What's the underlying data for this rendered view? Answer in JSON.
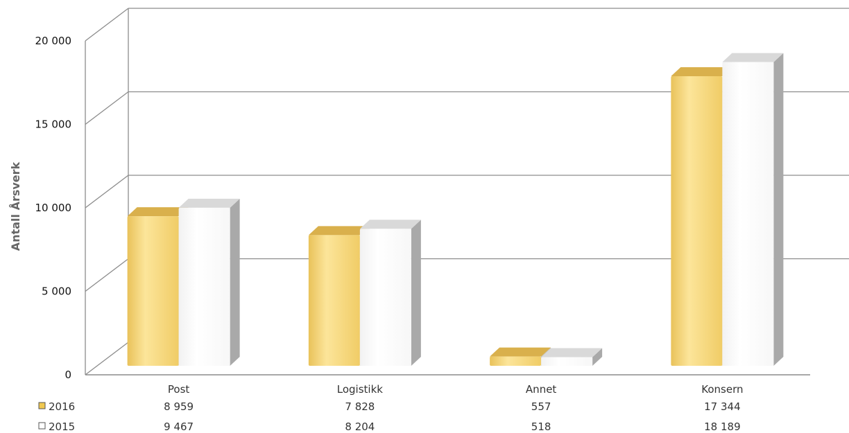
{
  "chart_data": {
    "type": "bar",
    "title": "",
    "xlabel": "",
    "ylabel": "Antall Årsverk",
    "ylim": [
      0,
      20000
    ],
    "yticks": [
      0,
      5000,
      10000,
      15000,
      20000
    ],
    "ytick_labels": [
      "0",
      "5 000",
      "10 000",
      "15 000",
      "20 000"
    ],
    "grid": true,
    "legend": "data-table-left",
    "categories": [
      "Post",
      "Logistikk",
      "Annet",
      "Konsern"
    ],
    "series": [
      {
        "name": "2016",
        "color": "#f5d46b",
        "values": [
          8959,
          7828,
          557,
          17344
        ],
        "value_labels": [
          "8 959",
          "7 828",
          "557",
          "17 344"
        ]
      },
      {
        "name": "2015",
        "color": "#ffffff",
        "values": [
          9467,
          8204,
          518,
          18189
        ],
        "value_labels": [
          "9 467",
          "8 204",
          "518",
          "18 189"
        ]
      }
    ]
  }
}
